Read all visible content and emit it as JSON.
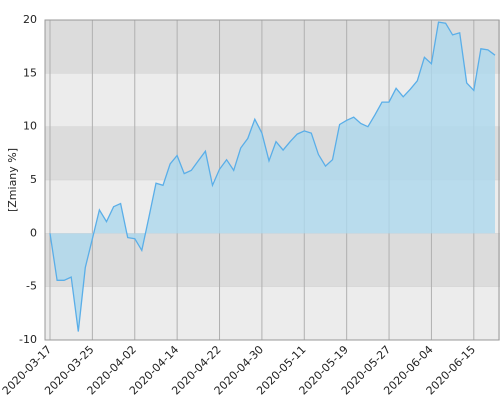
{
  "chart_data": {
    "type": "area",
    "y_label": "[Zmiany %]",
    "categories": [
      "2020-03-17",
      null,
      null,
      null,
      null,
      null,
      "2020-03-25",
      null,
      null,
      null,
      null,
      null,
      "2020-04-02",
      null,
      null,
      null,
      null,
      null,
      "2020-04-14",
      null,
      null,
      null,
      null,
      null,
      "2020-04-22",
      null,
      null,
      null,
      null,
      null,
      "2020-04-30",
      null,
      null,
      null,
      null,
      null,
      "2020-05-11",
      null,
      null,
      null,
      null,
      null,
      "2020-05-19",
      null,
      null,
      null,
      null,
      null,
      "2020-05-27",
      null,
      null,
      null,
      null,
      null,
      "2020-06-04",
      null,
      null,
      null,
      null,
      null,
      "2020-06-15",
      null,
      null,
      null
    ],
    "values": [
      0,
      -4.4,
      -4.4,
      -4.1,
      -9.2,
      -3.2,
      -0.5,
      2.2,
      1.1,
      2.5,
      2.8,
      -0.4,
      -0.5,
      -1.6,
      1.5,
      4.7,
      4.5,
      6.5,
      7.3,
      5.6,
      5.9,
      6.8,
      7.7,
      4.5,
      6.0,
      6.9,
      5.9,
      8.0,
      8.9,
      10.7,
      9.4,
      6.8,
      8.6,
      7.8,
      8.6,
      9.3,
      9.6,
      9.4,
      7.4,
      6.3,
      6.9,
      10.2,
      10.6,
      10.9,
      10.3,
      10.0,
      11.1,
      12.3,
      12.3,
      13.6,
      12.8,
      13.5,
      14.3,
      16.5,
      15.9,
      19.8,
      19.7,
      18.6,
      18.8,
      14.1,
      13.4,
      17.3,
      17.2,
      16.7
    ],
    "color": "#5aaee8",
    "fill": "#add8ee",
    "ylim": [
      -10,
      20
    ],
    "yticks": [
      -10,
      -5,
      0,
      5,
      10,
      15,
      20
    ],
    "grid": true
  }
}
